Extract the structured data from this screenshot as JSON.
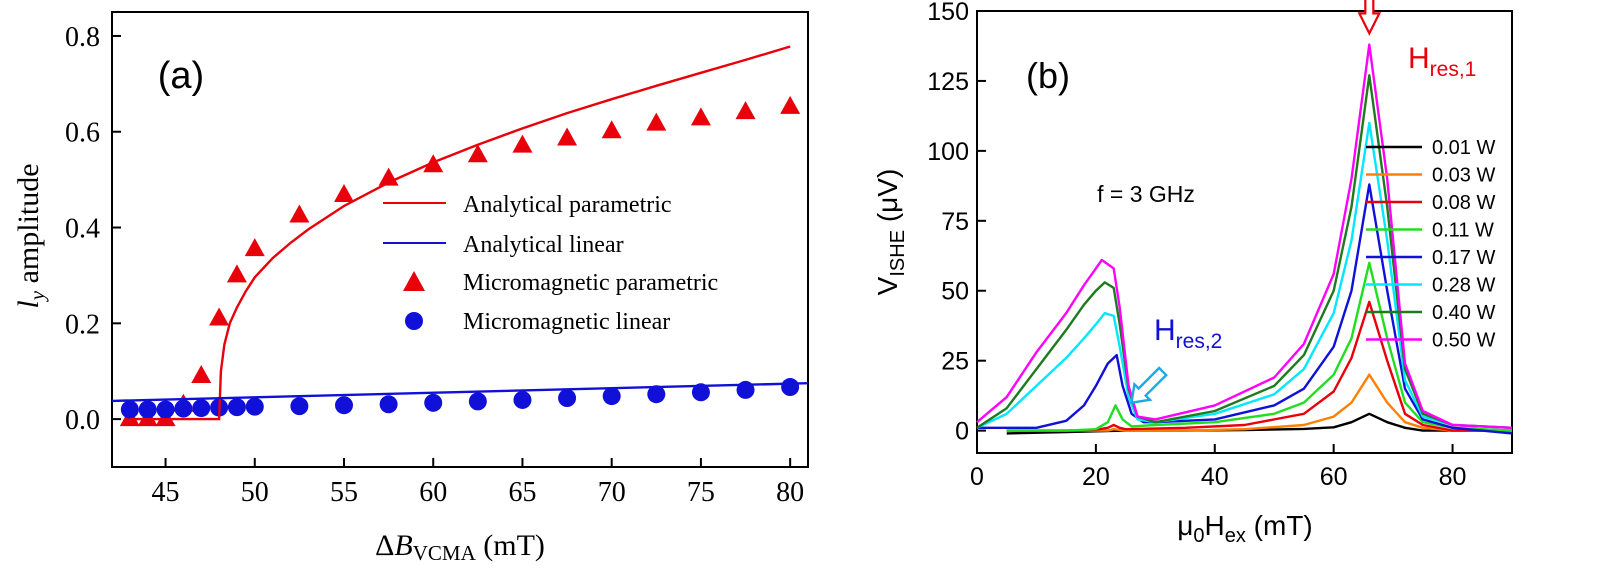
{
  "chart_data": [
    {
      "type": "line",
      "panel_label": "(a)",
      "ylabel_var": "l",
      "ylabel_sub": "y",
      "ylabel_rest": " amplitude",
      "xlabel_delta": "Δ",
      "xlabel_var": "B",
      "xlabel_sub": "VCMA",
      "xlabel_unit": " (mT)",
      "xlim": [
        42,
        81
      ],
      "ylim": [
        -0.1,
        0.85
      ],
      "xticks": [
        45,
        50,
        55,
        60,
        65,
        70,
        75,
        80
      ],
      "xtick_labels": [
        "45",
        "50",
        "55",
        "60",
        "65",
        "70",
        "75",
        "80"
      ],
      "yticks": [
        0.0,
        0.2,
        0.4,
        0.6,
        0.8
      ],
      "ytick_labels": [
        "0.0",
        "0.2",
        "0.4",
        "0.6",
        "0.8"
      ],
      "legend_position": "center-right",
      "series": [
        {
          "name": "Analytical parametric",
          "style": "line",
          "color": "#e8000b",
          "x": [
            43,
            45.5,
            48,
            48,
            48.1,
            48.3,
            48.6,
            49,
            49.5,
            50,
            51,
            52,
            53,
            55,
            57.5,
            60,
            62.5,
            65,
            67.5,
            70,
            72.5,
            75,
            77.5,
            80
          ],
          "y": [
            0.0,
            0.0,
            0.0,
            0.0,
            0.1,
            0.156,
            0.2,
            0.233,
            0.267,
            0.296,
            0.336,
            0.368,
            0.396,
            0.445,
            0.494,
            0.536,
            0.573,
            0.607,
            0.639,
            0.668,
            0.696,
            0.723,
            0.75,
            0.778
          ]
        },
        {
          "name": "Analytical linear",
          "style": "line",
          "color": "#1010d8",
          "x": [
            42,
            81
          ],
          "y": [
            0.038,
            0.075
          ]
        },
        {
          "name": "Micromagnetic parametric",
          "style": "triangle",
          "color": "#e8000b",
          "x": [
            43,
            44,
            45,
            46,
            47,
            48,
            49,
            50,
            52.5,
            55,
            57.5,
            60,
            62.5,
            65,
            67.5,
            70,
            72.5,
            75,
            77.5,
            80
          ],
          "y": [
            0.0,
            0.0,
            0.0,
            0.03,
            0.09,
            0.21,
            0.3,
            0.355,
            0.425,
            0.468,
            0.502,
            0.53,
            0.551,
            0.571,
            0.586,
            0.601,
            0.617,
            0.628,
            0.641,
            0.652
          ]
        },
        {
          "name": "Micromagnetic linear",
          "style": "circle",
          "color": "#1010d8",
          "x": [
            43,
            44,
            45,
            46,
            47,
            48,
            49,
            50,
            52.5,
            55,
            57.5,
            60,
            62.5,
            65,
            67.5,
            70,
            72.5,
            75,
            77.5,
            80
          ],
          "y": [
            0.02,
            0.02,
            0.02,
            0.022,
            0.023,
            0.024,
            0.025,
            0.026,
            0.027,
            0.029,
            0.031,
            0.034,
            0.037,
            0.04,
            0.044,
            0.048,
            0.052,
            0.056,
            0.061,
            0.067
          ]
        }
      ]
    },
    {
      "type": "line",
      "panel_label": "(b)",
      "ylabel_main": "V",
      "ylabel_sub": "ISHE",
      "ylabel_unit": " (μV)",
      "xlabel_main": "μ",
      "xlabel_sub1": "0",
      "xlabel_mid": "H",
      "xlabel_sub2": "ex",
      "xlabel_unit": " (mT)",
      "xlim": [
        0,
        90
      ],
      "ylim": [
        -8,
        150
      ],
      "xticks": [
        0,
        20,
        40,
        60,
        80
      ],
      "xtick_labels": [
        "0",
        "20",
        "40",
        "60",
        "80"
      ],
      "yticks": [
        0,
        25,
        50,
        75,
        100,
        125,
        150
      ],
      "ytick_labels": [
        "0",
        "25",
        "50",
        "75",
        "100",
        "125",
        "150"
      ],
      "annotations": {
        "frequency": "f = 3 GHz",
        "hres1_main": "H",
        "hres1_sub": "res,1",
        "hres1_color": "#e8000b",
        "hres2_main": "H",
        "hres2_sub": "res,2",
        "hres2_color": "#1010d8",
        "hres1_arrow_x": 66,
        "hres1_arrow_y": 142,
        "hres2_arrow_x": 26,
        "hres2_arrow_y": 10
      },
      "legend_position": "right",
      "series": [
        {
          "name": "0.01 W",
          "color": "#000000",
          "x": [
            5,
            15,
            25,
            35,
            45,
            55,
            60,
            63,
            66,
            69,
            72,
            75,
            80,
            90
          ],
          "y": [
            -1,
            -0.5,
            0,
            0,
            0.2,
            0.6,
            1.2,
            3,
            6,
            3,
            1,
            0,
            0,
            0
          ]
        },
        {
          "name": "0.03 W",
          "color": "#ff8000",
          "x": [
            5,
            15,
            22,
            23,
            25,
            35,
            45,
            55,
            60,
            63,
            66,
            69,
            72,
            75,
            80,
            90
          ],
          "y": [
            0,
            0,
            0,
            0.5,
            0,
            0,
            0.5,
            2,
            5,
            10,
            20,
            10,
            3,
            1,
            0,
            0
          ]
        },
        {
          "name": "0.08 W",
          "color": "#e8000b",
          "x": [
            5,
            15,
            20,
            22,
            23,
            24,
            25,
            35,
            45,
            55,
            60,
            63,
            66,
            69,
            72,
            75,
            80,
            90
          ],
          "y": [
            0,
            0,
            0.3,
            1,
            2,
            1,
            0.5,
            1,
            2,
            6,
            14,
            26,
            46,
            25,
            6,
            2,
            0,
            0
          ]
        },
        {
          "name": "0.11 W",
          "color": "#22dd22",
          "x": [
            5,
            15,
            20,
            22,
            23.3,
            24.5,
            26,
            30,
            40,
            50,
            55,
            60,
            63,
            66,
            69,
            72,
            75,
            80,
            90
          ],
          "y": [
            0,
            0,
            0.5,
            3,
            9,
            4,
            1.5,
            2,
            3,
            6,
            10,
            20,
            33,
            60,
            33,
            10,
            3,
            1,
            0
          ]
        },
        {
          "name": "0.17 W",
          "color": "#1010d8",
          "x": [
            0,
            5,
            10,
            15,
            18,
            20,
            22,
            23.5,
            24.5,
            26,
            28,
            30,
            40,
            50,
            55,
            60,
            63,
            66,
            69,
            72,
            75,
            80,
            90
          ],
          "y": [
            1,
            1,
            1,
            3.5,
            9,
            16,
            24,
            27,
            16,
            6,
            3,
            3,
            4,
            9,
            15,
            30,
            50,
            88,
            50,
            15,
            4,
            1,
            -1
          ]
        },
        {
          "name": "0.28 W",
          "color": "#00e8ff",
          "x": [
            0,
            5,
            10,
            15,
            18,
            20,
            21.5,
            23,
            24,
            25.5,
            27,
            30,
            40,
            50,
            55,
            60,
            63,
            66,
            69,
            72,
            75,
            80,
            90
          ],
          "y": [
            1,
            6,
            16,
            26,
            33,
            38,
            42,
            41,
            30,
            12,
            4,
            3,
            6,
            13,
            22,
            42,
            68,
            110,
            68,
            18,
            5,
            2,
            1
          ]
        },
        {
          "name": "0.40 W",
          "color": "#1e7a1e",
          "x": [
            0,
            5,
            10,
            15,
            18,
            20,
            21.5,
            23,
            24,
            25.5,
            27,
            30,
            40,
            50,
            55,
            60,
            63,
            66,
            69,
            72,
            75,
            80,
            90
          ],
          "y": [
            1,
            8,
            22,
            36,
            45,
            50,
            53,
            51,
            38,
            15,
            5,
            3,
            7,
            16,
            27,
            50,
            80,
            127,
            80,
            22,
            6,
            2,
            1
          ]
        },
        {
          "name": "0.50 W",
          "color": "#ff00ff",
          "x": [
            0,
            5,
            10,
            15,
            18,
            20,
            21,
            23,
            24,
            25.5,
            27,
            30,
            40,
            50,
            55,
            60,
            63,
            66,
            69,
            72,
            75,
            80,
            90
          ],
          "y": [
            3,
            12,
            28,
            42,
            52,
            58,
            61,
            58,
            44,
            16,
            5,
            4,
            9,
            19,
            31,
            56,
            90,
            138,
            90,
            24,
            7,
            2,
            1
          ]
        }
      ]
    }
  ]
}
